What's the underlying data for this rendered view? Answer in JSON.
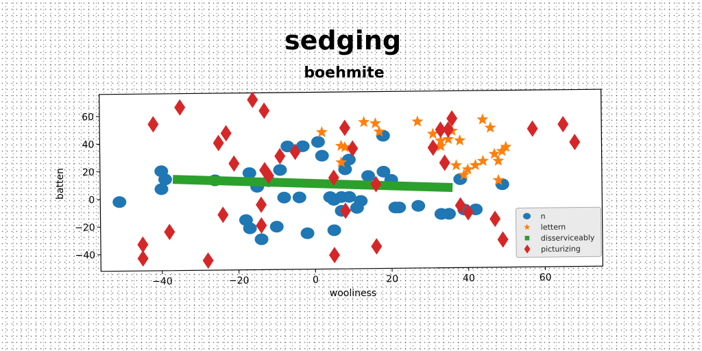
{
  "chart_data": {
    "type": "scatter",
    "title": "sedging",
    "subtitle": "boehmite",
    "xlabel": "wooliness",
    "ylabel": "batten",
    "xlim": [
      -56,
      75
    ],
    "ylim": [
      -52,
      76
    ],
    "xticks": [
      -40,
      -20,
      0,
      20,
      40,
      60
    ],
    "yticks": [
      -40,
      -20,
      0,
      20,
      40,
      60
    ],
    "grid": false,
    "legend_position": "lower-right",
    "series": [
      {
        "name": "n",
        "marker": "circle",
        "color": "#1f77b4",
        "points": [
          [
            -51,
            -2
          ],
          [
            -40,
            20
          ],
          [
            -39,
            14
          ],
          [
            -40,
            7
          ],
          [
            -26,
            13
          ],
          [
            -17,
            18
          ],
          [
            -9,
            20
          ],
          [
            -12,
            12
          ],
          [
            -15,
            8
          ],
          [
            -18,
            -16
          ],
          [
            -17,
            -22
          ],
          [
            -10,
            -21
          ],
          [
            -14,
            -30
          ],
          [
            -8,
            0
          ],
          [
            -4,
            0
          ],
          [
            -7,
            37
          ],
          [
            -3,
            37
          ],
          [
            1,
            40
          ],
          [
            2,
            30
          ],
          [
            4,
            0
          ],
          [
            5,
            -2
          ],
          [
            7,
            0
          ],
          [
            9,
            0
          ],
          [
            12,
            -3
          ],
          [
            8,
            20
          ],
          [
            9,
            27
          ],
          [
            14,
            15
          ],
          [
            18,
            18
          ],
          [
            20,
            12
          ],
          [
            18,
            44
          ],
          [
            21,
            -8
          ],
          [
            22,
            -8
          ],
          [
            27,
            -7
          ],
          [
            33,
            -13
          ],
          [
            35,
            -13
          ],
          [
            39,
            -10
          ],
          [
            42,
            -10
          ],
          [
            38,
            12
          ],
          [
            49,
            8
          ],
          [
            -2,
            -26
          ],
          [
            5,
            -24
          ],
          [
            7,
            -10
          ],
          [
            11,
            -8
          ]
        ]
      },
      {
        "name": "lettern",
        "marker": "star",
        "color": "#ff7f0e",
        "points": [
          [
            2,
            47
          ],
          [
            7,
            25
          ],
          [
            7,
            37
          ],
          [
            13,
            54
          ],
          [
            16,
            53
          ],
          [
            17,
            47
          ],
          [
            27,
            54
          ],
          [
            31,
            45
          ],
          [
            33,
            36
          ],
          [
            33,
            40
          ],
          [
            35,
            41
          ],
          [
            36,
            47
          ],
          [
            37,
            22
          ],
          [
            38,
            40
          ],
          [
            39,
            15
          ],
          [
            40,
            19
          ],
          [
            42,
            22
          ],
          [
            44,
            25
          ],
          [
            44,
            55
          ],
          [
            46,
            49
          ],
          [
            47,
            30
          ],
          [
            48,
            25
          ],
          [
            49,
            32
          ],
          [
            50,
            35
          ],
          [
            48,
            11
          ],
          [
            8,
            36
          ]
        ]
      },
      {
        "name": "disserviceably",
        "marker": "square",
        "color": "#2ca02c",
        "line": [
          [
            -37,
            14
          ],
          [
            36,
            6
          ]
        ]
      },
      {
        "name": "picturizing",
        "marker": "diamond",
        "color": "#d62728",
        "points": [
          [
            -42,
            54
          ],
          [
            -35,
            66
          ],
          [
            -16,
            71
          ],
          [
            -13,
            63
          ],
          [
            -23,
            47
          ],
          [
            -25,
            40
          ],
          [
            -21,
            25
          ],
          [
            -12,
            16
          ],
          [
            -9,
            30
          ],
          [
            -5,
            33
          ],
          [
            -14,
            -5
          ],
          [
            -14,
            -20
          ],
          [
            -24,
            -12
          ],
          [
            -38,
            -24
          ],
          [
            -45,
            -33
          ],
          [
            -45,
            -43
          ],
          [
            -28,
            -45
          ],
          [
            -13,
            20
          ],
          [
            8,
            50
          ],
          [
            10,
            35
          ],
          [
            5,
            14
          ],
          [
            16,
            9
          ],
          [
            8,
            -10
          ],
          [
            5,
            -42
          ],
          [
            16,
            -36
          ],
          [
            31,
            35
          ],
          [
            34,
            24
          ],
          [
            33,
            48
          ],
          [
            35,
            48
          ],
          [
            36,
            56
          ],
          [
            38,
            -7
          ],
          [
            40,
            -12
          ],
          [
            47,
            -17
          ],
          [
            49,
            -32
          ],
          [
            57,
            48
          ],
          [
            65,
            51
          ],
          [
            68,
            38
          ]
        ]
      }
    ]
  }
}
